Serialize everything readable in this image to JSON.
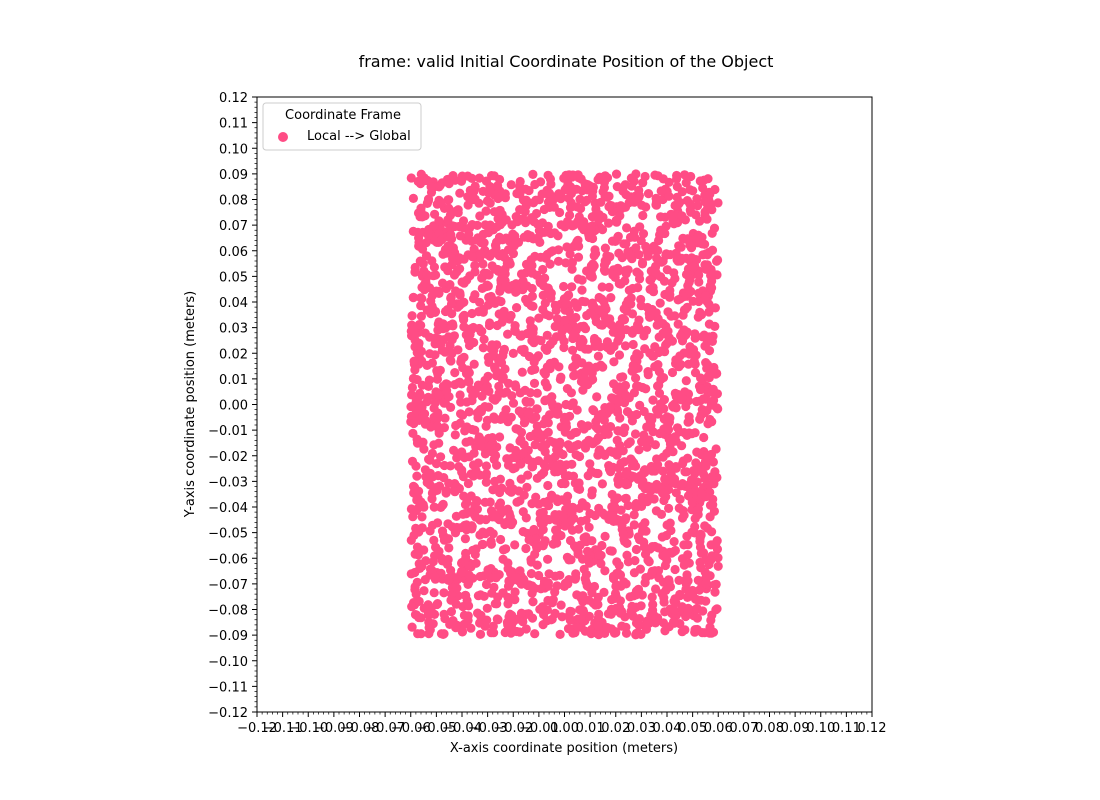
{
  "chart_data": {
    "type": "scatter",
    "title": "frame: valid Initial Coordinate Position of the Object",
    "xlabel": "X-axis coordinate position (meters)",
    "ylabel": "Y-axis coordinate position (meters)",
    "xlim": [
      -0.12,
      0.12
    ],
    "ylim": [
      -0.12,
      0.12
    ],
    "xticks": [
      "−0.12",
      "−0.11",
      "−0.10",
      "−0.09",
      "−0.08",
      "−0.07",
      "−0.06",
      "−0.05",
      "−0.04",
      "−0.03",
      "−0.02",
      "−0.01",
      "0.00",
      "0.01",
      "0.02",
      "0.03",
      "0.04",
      "0.05",
      "0.06",
      "0.07",
      "0.08",
      "0.09",
      "0.10",
      "0.11",
      "0.12"
    ],
    "yticks": [
      "−0.12",
      "−0.11",
      "−0.10",
      "−0.09",
      "−0.08",
      "−0.07",
      "−0.06",
      "−0.05",
      "−0.04",
      "−0.03",
      "−0.02",
      "−0.01",
      "0.00",
      "0.01",
      "0.02",
      "0.03",
      "0.04",
      "0.05",
      "0.06",
      "0.07",
      "0.08",
      "0.09",
      "0.10",
      "0.11",
      "0.12"
    ],
    "grid": false,
    "legend": {
      "title": "Coordinate Frame",
      "placement": "upper-left"
    },
    "series": [
      {
        "name": "Local --> Global",
        "color": "#ff4c85",
        "x_range": [
          -0.06,
          0.06
        ],
        "y_range": [
          -0.09,
          0.09
        ],
        "points": [
          [
            -0.0598,
            0.0884
          ],
          [
            -0.0562,
            0.0862
          ],
          [
            -0.0551,
            0.0885
          ],
          [
            -0.0531,
            0.0795
          ],
          [
            -0.0512,
            0.0869
          ],
          [
            -0.0457,
            0.0878
          ],
          [
            -0.0427,
            0.0875
          ],
          [
            -0.0415,
            0.076
          ],
          [
            -0.0365,
            0.08
          ],
          [
            -0.0275,
            0.0827
          ],
          [
            -0.0175,
            0.085
          ],
          [
            -0.0055,
            0.088
          ],
          [
            -0.0062,
            0.0825
          ],
          [
            0.0015,
            0.0895
          ],
          [
            0.0065,
            0.088
          ],
          [
            0.0145,
            0.0885
          ],
          [
            0.0305,
            0.0865
          ],
          [
            0.0475,
            0.0865
          ],
          [
            0.053,
            0.0872
          ],
          [
            0.0575,
            0.076
          ],
          [
            -0.0589,
            -0.0773
          ],
          [
            -0.056,
            -0.0832
          ],
          [
            -0.053,
            -0.0822
          ],
          [
            -0.0448,
            -0.0858
          ],
          [
            -0.0419,
            -0.0862
          ],
          [
            -0.031,
            -0.0865
          ],
          [
            -0.0278,
            -0.0865
          ],
          [
            -0.0175,
            -0.0888
          ],
          [
            -0.0149,
            -0.0876
          ],
          [
            -0.0048,
            -0.0838
          ],
          [
            0.0065,
            -0.087
          ],
          [
            0.0131,
            -0.0875
          ],
          [
            0.0242,
            -0.0893
          ],
          [
            0.0298,
            -0.0897
          ],
          [
            0.0392,
            -0.0883
          ],
          [
            0.045,
            -0.0855
          ],
          [
            0.0518,
            -0.0878
          ],
          [
            0.0575,
            -0.0822
          ],
          [
            0.0592,
            -0.0702
          ],
          [
            -0.0598,
            -0.053
          ]
        ]
      }
    ]
  }
}
